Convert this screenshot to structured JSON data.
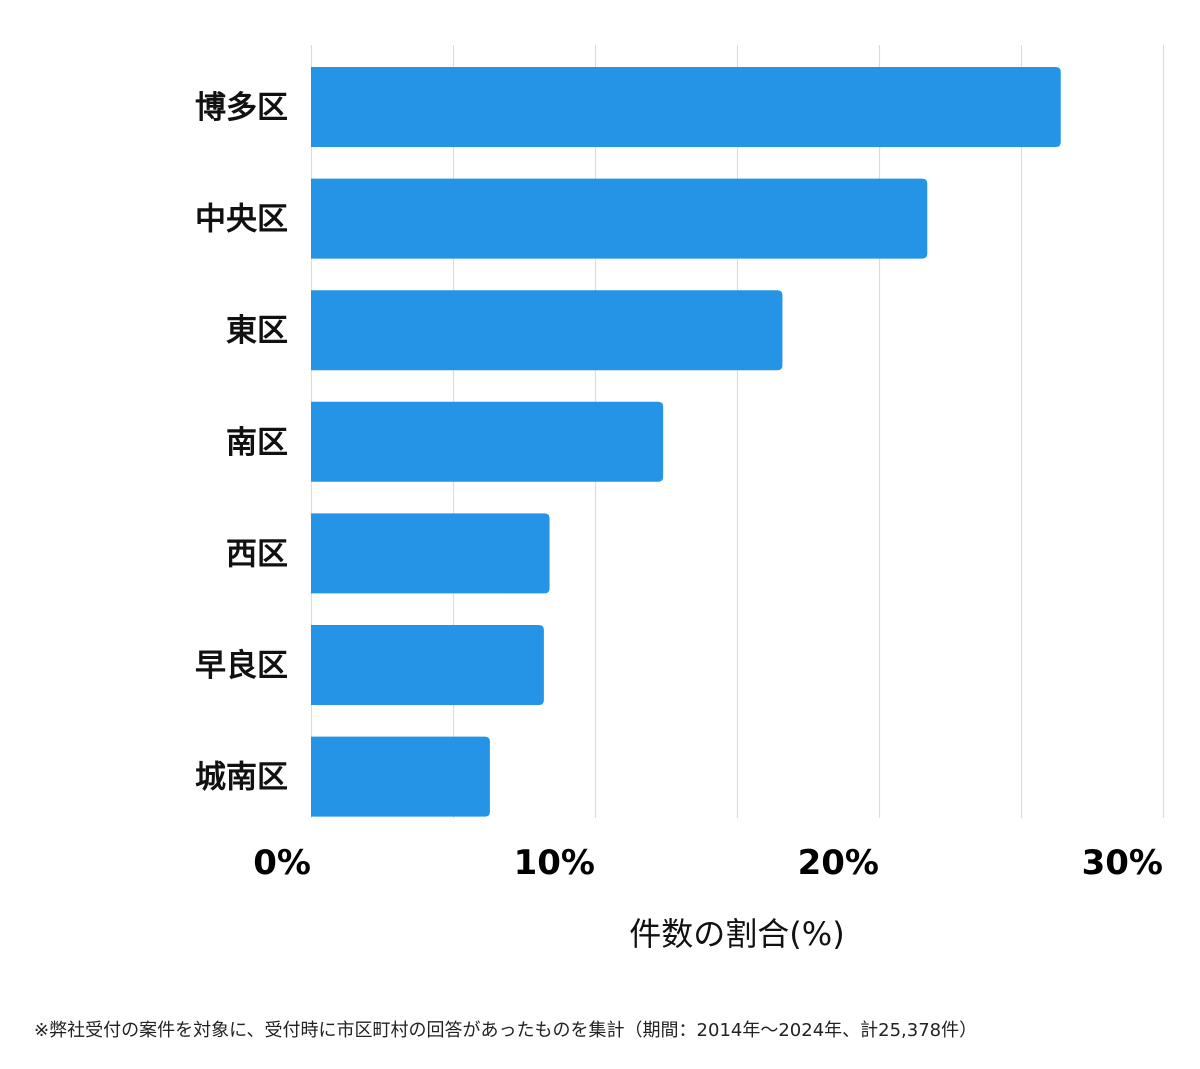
{
  "chart_data": {
    "type": "bar",
    "orientation": "horizontal",
    "categories": [
      "博多区",
      "中央区",
      "東区",
      "南区",
      "西区",
      "早良区",
      "城南区"
    ],
    "values": [
      26.4,
      21.7,
      16.6,
      12.4,
      8.4,
      8.2,
      6.3
    ],
    "xlabel": "件数の割合(%)",
    "xlim": [
      0,
      30
    ],
    "xticks": [
      0,
      10,
      20,
      30
    ],
    "xtick_labels": [
      "0%",
      "10%",
      "20%",
      "30%"
    ],
    "grid": true,
    "bar_color": "#2694e6"
  },
  "footnote": "※弊社受付の案件を対象に、受付時に市区町村の回答があったものを集計（期間：2014年～2024年、計25,378件）"
}
